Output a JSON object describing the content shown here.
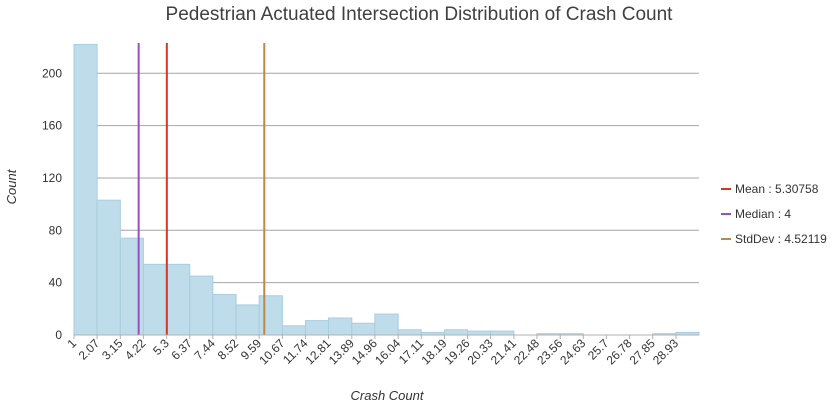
{
  "chart_data": {
    "type": "bar",
    "title": "Pedestrian Actuated Intersection Distribution of Crash Count",
    "xlabel": "Crash Count",
    "ylabel": "Count",
    "x_range": [
      1,
      30
    ],
    "bin_edges": [
      1,
      2.07,
      3.15,
      4.22,
      5.3,
      6.37,
      7.44,
      8.52,
      9.59,
      10.67,
      11.74,
      12.81,
      13.89,
      14.96,
      16.04,
      17.11,
      18.19,
      19.26,
      20.33,
      21.41,
      22.48,
      23.56,
      24.63,
      25.7,
      26.78,
      27.85,
      28.93,
      30
    ],
    "x_tick_labels": [
      "1",
      "2.07",
      "3.15",
      "4.22",
      "5.3",
      "6.37",
      "7.44",
      "8.52",
      "9.59",
      "10.67",
      "11.74",
      "12.81",
      "13.89",
      "14.96",
      "16.04",
      "17.11",
      "18.19",
      "19.26",
      "20.33",
      "21.41",
      "22.48",
      "23.56",
      "24.63",
      "25.7",
      "26.78",
      "27.85",
      "28.93"
    ],
    "values": [
      222,
      103,
      74,
      54,
      54,
      45,
      31,
      23,
      30,
      7,
      11,
      13,
      9,
      16,
      4,
      2,
      4,
      3,
      3,
      0,
      1,
      1,
      0,
      0,
      0,
      1,
      2
    ],
    "ylim": [
      0,
      230
    ],
    "y_ticks": [
      0,
      40,
      80,
      120,
      160,
      200
    ],
    "grid": true,
    "legend_position": "right",
    "bar_color": "#bfdcea",
    "reference_lines": [
      {
        "label": "Mean : 5.30758",
        "value": 5.30758,
        "color": "#d9361f"
      },
      {
        "label": "Median : 4",
        "value": 4,
        "color": "#9b4fbf"
      },
      {
        "label": "StdDev : 4.52119",
        "value": 9.82877,
        "color": "#b58a4d"
      }
    ]
  }
}
